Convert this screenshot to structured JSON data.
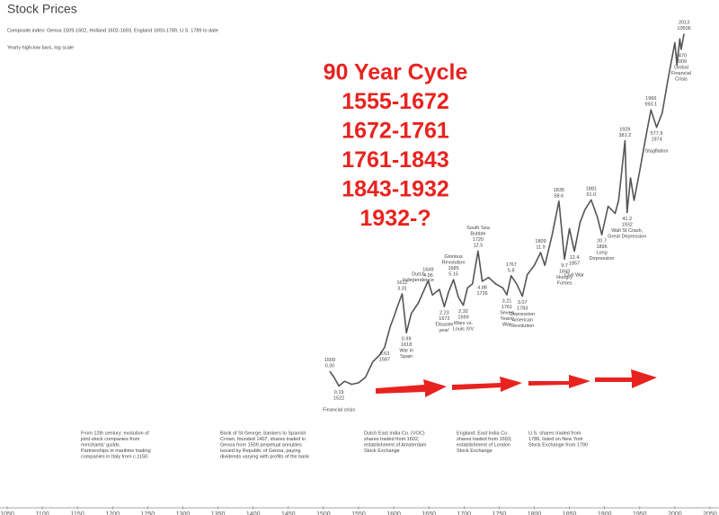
{
  "chart_data": {
    "type": "line",
    "title": "Stock Prices",
    "subtitle": "Composite index: Genoa 1509-1602, Holland 1602-1693, England 1693-1789, U.S. 1789 to date",
    "note": "Yearly high-low bars, log scale",
    "log_scale": true,
    "color": "#555555",
    "xlim": [
      1050,
      2050
    ],
    "xticks": [
      1050,
      1100,
      1150,
      1200,
      1250,
      1300,
      1350,
      1400,
      1450,
      1500,
      1550,
      1600,
      1650,
      1700,
      1750,
      1800,
      1850,
      1900,
      1950,
      2000,
      2050
    ],
    "ylim": [
      0.005,
      30000
    ],
    "x": [
      1509,
      1515,
      1522,
      1530,
      1540,
      1550,
      1560,
      1570,
      1580,
      1587,
      1595,
      1600,
      1605,
      1612,
      1616,
      1618,
      1625,
      1635,
      1649,
      1655,
      1665,
      1672,
      1678,
      1685,
      1692,
      1699,
      1705,
      1712,
      1720,
      1726,
      1735,
      1745,
      1755,
      1761,
      1767,
      1775,
      1783,
      1790,
      1800,
      1809,
      1815,
      1825,
      1835,
      1843,
      1850,
      1857,
      1865,
      1872,
      1881,
      1890,
      1896,
      1905,
      1915,
      1920,
      1929,
      1932,
      1937,
      1942,
      1950,
      1960,
      1966,
      1974,
      1982,
      1990,
      2000,
      2003,
      2007,
      2009,
      2013
    ],
    "values": [
      0.3,
      0.25,
      0.19,
      0.22,
      0.2,
      0.21,
      0.25,
      0.4,
      0.5,
      0.63,
      1.2,
      1.6,
      2.2,
      3.31,
      1.5,
      0.99,
      1.8,
      2.5,
      4.96,
      3.2,
      3.8,
      2.23,
      3.5,
      5.15,
      3.0,
      2.32,
      4.0,
      4.5,
      12.5,
      4.88,
      5.5,
      4.5,
      4.0,
      3.21,
      5.8,
      4.5,
      3.07,
      6,
      8,
      11.9,
      8,
      20,
      58.6,
      9.7,
      25,
      12.4,
      30,
      45,
      61.0,
      35,
      20.7,
      50,
      40,
      60,
      381.2,
      41.2,
      120,
      60,
      150,
      500,
      993.1,
      577.9,
      900,
      2500,
      8000,
      4000,
      9000,
      6470,
      10506
    ],
    "annotations": [
      {
        "x": 1509,
        "y": 0.3,
        "side": "above",
        "lines": [
          "1509",
          "0.30"
        ]
      },
      {
        "x": 1522,
        "y": 0.19,
        "side": "below",
        "lines": [
          "0.19",
          "1522",
          "",
          "Financial crisis"
        ]
      },
      {
        "x": 1587,
        "y": 0.63,
        "side": "below",
        "lines": [
          "0.63",
          "1587"
        ]
      },
      {
        "x": 1612,
        "y": 3.31,
        "side": "above",
        "lines": [
          "1612",
          "3.31"
        ]
      },
      {
        "x": 1618,
        "y": 0.99,
        "side": "below",
        "lines": [
          "0.99",
          "1618",
          "War in",
          "Spain"
        ]
      },
      {
        "x": 1635,
        "y": 2.5,
        "side": "above",
        "lines": [
          "Dutch",
          "Independence",
          "",
          "",
          ""
        ]
      },
      {
        "x": 1649,
        "y": 4.96,
        "side": "above",
        "lines": [
          "1649",
          "4.96"
        ]
      },
      {
        "x": 1672,
        "y": 2.23,
        "side": "below",
        "lines": [
          "2.23",
          "1672",
          "'Disaster",
          "year'"
        ]
      },
      {
        "x": 1685,
        "y": 5.15,
        "side": "above",
        "lines": [
          "Glorious",
          "Revolution",
          "1685",
          "5.15"
        ]
      },
      {
        "x": 1699,
        "y": 2.32,
        "side": "below",
        "lines": [
          "2.32",
          "1699",
          "Wars vs.",
          "Louis XIV"
        ]
      },
      {
        "x": 1720,
        "y": 12.5,
        "side": "above",
        "lines": [
          "South Sea",
          "Bubble",
          "1720",
          "12.5"
        ]
      },
      {
        "x": 1726,
        "y": 4.88,
        "side": "below",
        "lines": [
          "4.88",
          "1726"
        ]
      },
      {
        "x": 1761,
        "y": 3.21,
        "side": "below",
        "lines": [
          "3.21",
          "1761",
          "Seven",
          "Years'",
          "War"
        ]
      },
      {
        "x": 1767,
        "y": 5.8,
        "side": "above",
        "lines": [
          "1767",
          "5.8"
        ]
      },
      {
        "x": 1783,
        "y": 3.07,
        "side": "below",
        "lines": [
          "3.07",
          "1783",
          "Depression",
          "American",
          "Revolution"
        ]
      },
      {
        "x": 1809,
        "y": 11.9,
        "side": "above",
        "lines": [
          "1809",
          "11.9"
        ]
      },
      {
        "x": 1835,
        "y": 58.6,
        "side": "above",
        "lines": [
          "1835",
          "58.6"
        ]
      },
      {
        "x": 1843,
        "y": 9.7,
        "side": "below",
        "lines": [
          "9.7",
          "1843",
          "Hungry",
          "Forties"
        ]
      },
      {
        "x": 1857,
        "y": 12.4,
        "side": "below",
        "lines": [
          "12.4",
          "1857",
          "",
          "Civil War"
        ]
      },
      {
        "x": 1881,
        "y": 61.0,
        "side": "above",
        "lines": [
          "1881",
          "61.0"
        ]
      },
      {
        "x": 1896,
        "y": 20.7,
        "side": "below",
        "lines": [
          "20.7",
          "1896",
          "Long",
          "Depression"
        ]
      },
      {
        "x": 1929,
        "y": 381.2,
        "side": "above",
        "lines": [
          "1929",
          "381.2"
        ]
      },
      {
        "x": 1932,
        "y": 41.2,
        "side": "below",
        "lines": [
          "41.2",
          "1932",
          "Wall St Crash,",
          "Great Depression"
        ]
      },
      {
        "x": 1966,
        "y": 993.1,
        "side": "above",
        "lines": [
          "1966",
          "993.1"
        ]
      },
      {
        "x": 1974,
        "y": 577.9,
        "side": "below",
        "lines": [
          "577.9",
          "1974",
          "",
          "Stagflation"
        ]
      },
      {
        "x": 2009,
        "y": 6470,
        "side": "below",
        "lines": [
          "6470",
          "2009",
          "Global",
          "Financial",
          "Crisis"
        ]
      },
      {
        "x": 2013,
        "y": 10506,
        "side": "above",
        "lines": [
          "2013",
          "10506"
        ]
      }
    ],
    "overlay": [
      "90 Year Cycle",
      "1555-1672",
      "1672-1761",
      "1761-1843",
      "1843-1932",
      "1932-?"
    ],
    "notes": [
      [
        "From 12th century: evolution of",
        "joint-stock companies from",
        "merchants' guilds.",
        "Partnerships in maritime trading",
        "companies in Italy from c.1150."
      ],
      [
        "Bank of St George, bankers to Spanish",
        "Crown, founded 1407, shares traded in",
        "Genoa from 1509 perpetual annuities",
        "issued by Republic of Genoa, paying",
        "dividends varying with profits of the bank"
      ],
      [
        "Dutch East India Co. (VOC)",
        "shares traded from 1602;",
        "establishment of Amsterdam",
        "Stock Exchange"
      ],
      [
        "England: East India Co.",
        "shares traded from 1693;",
        "establishment of London",
        "Stock Exchange"
      ],
      [
        "U.S. shares traded from",
        "1789, listed on New York",
        "Stock Exchange from 1790"
      ]
    ]
  }
}
